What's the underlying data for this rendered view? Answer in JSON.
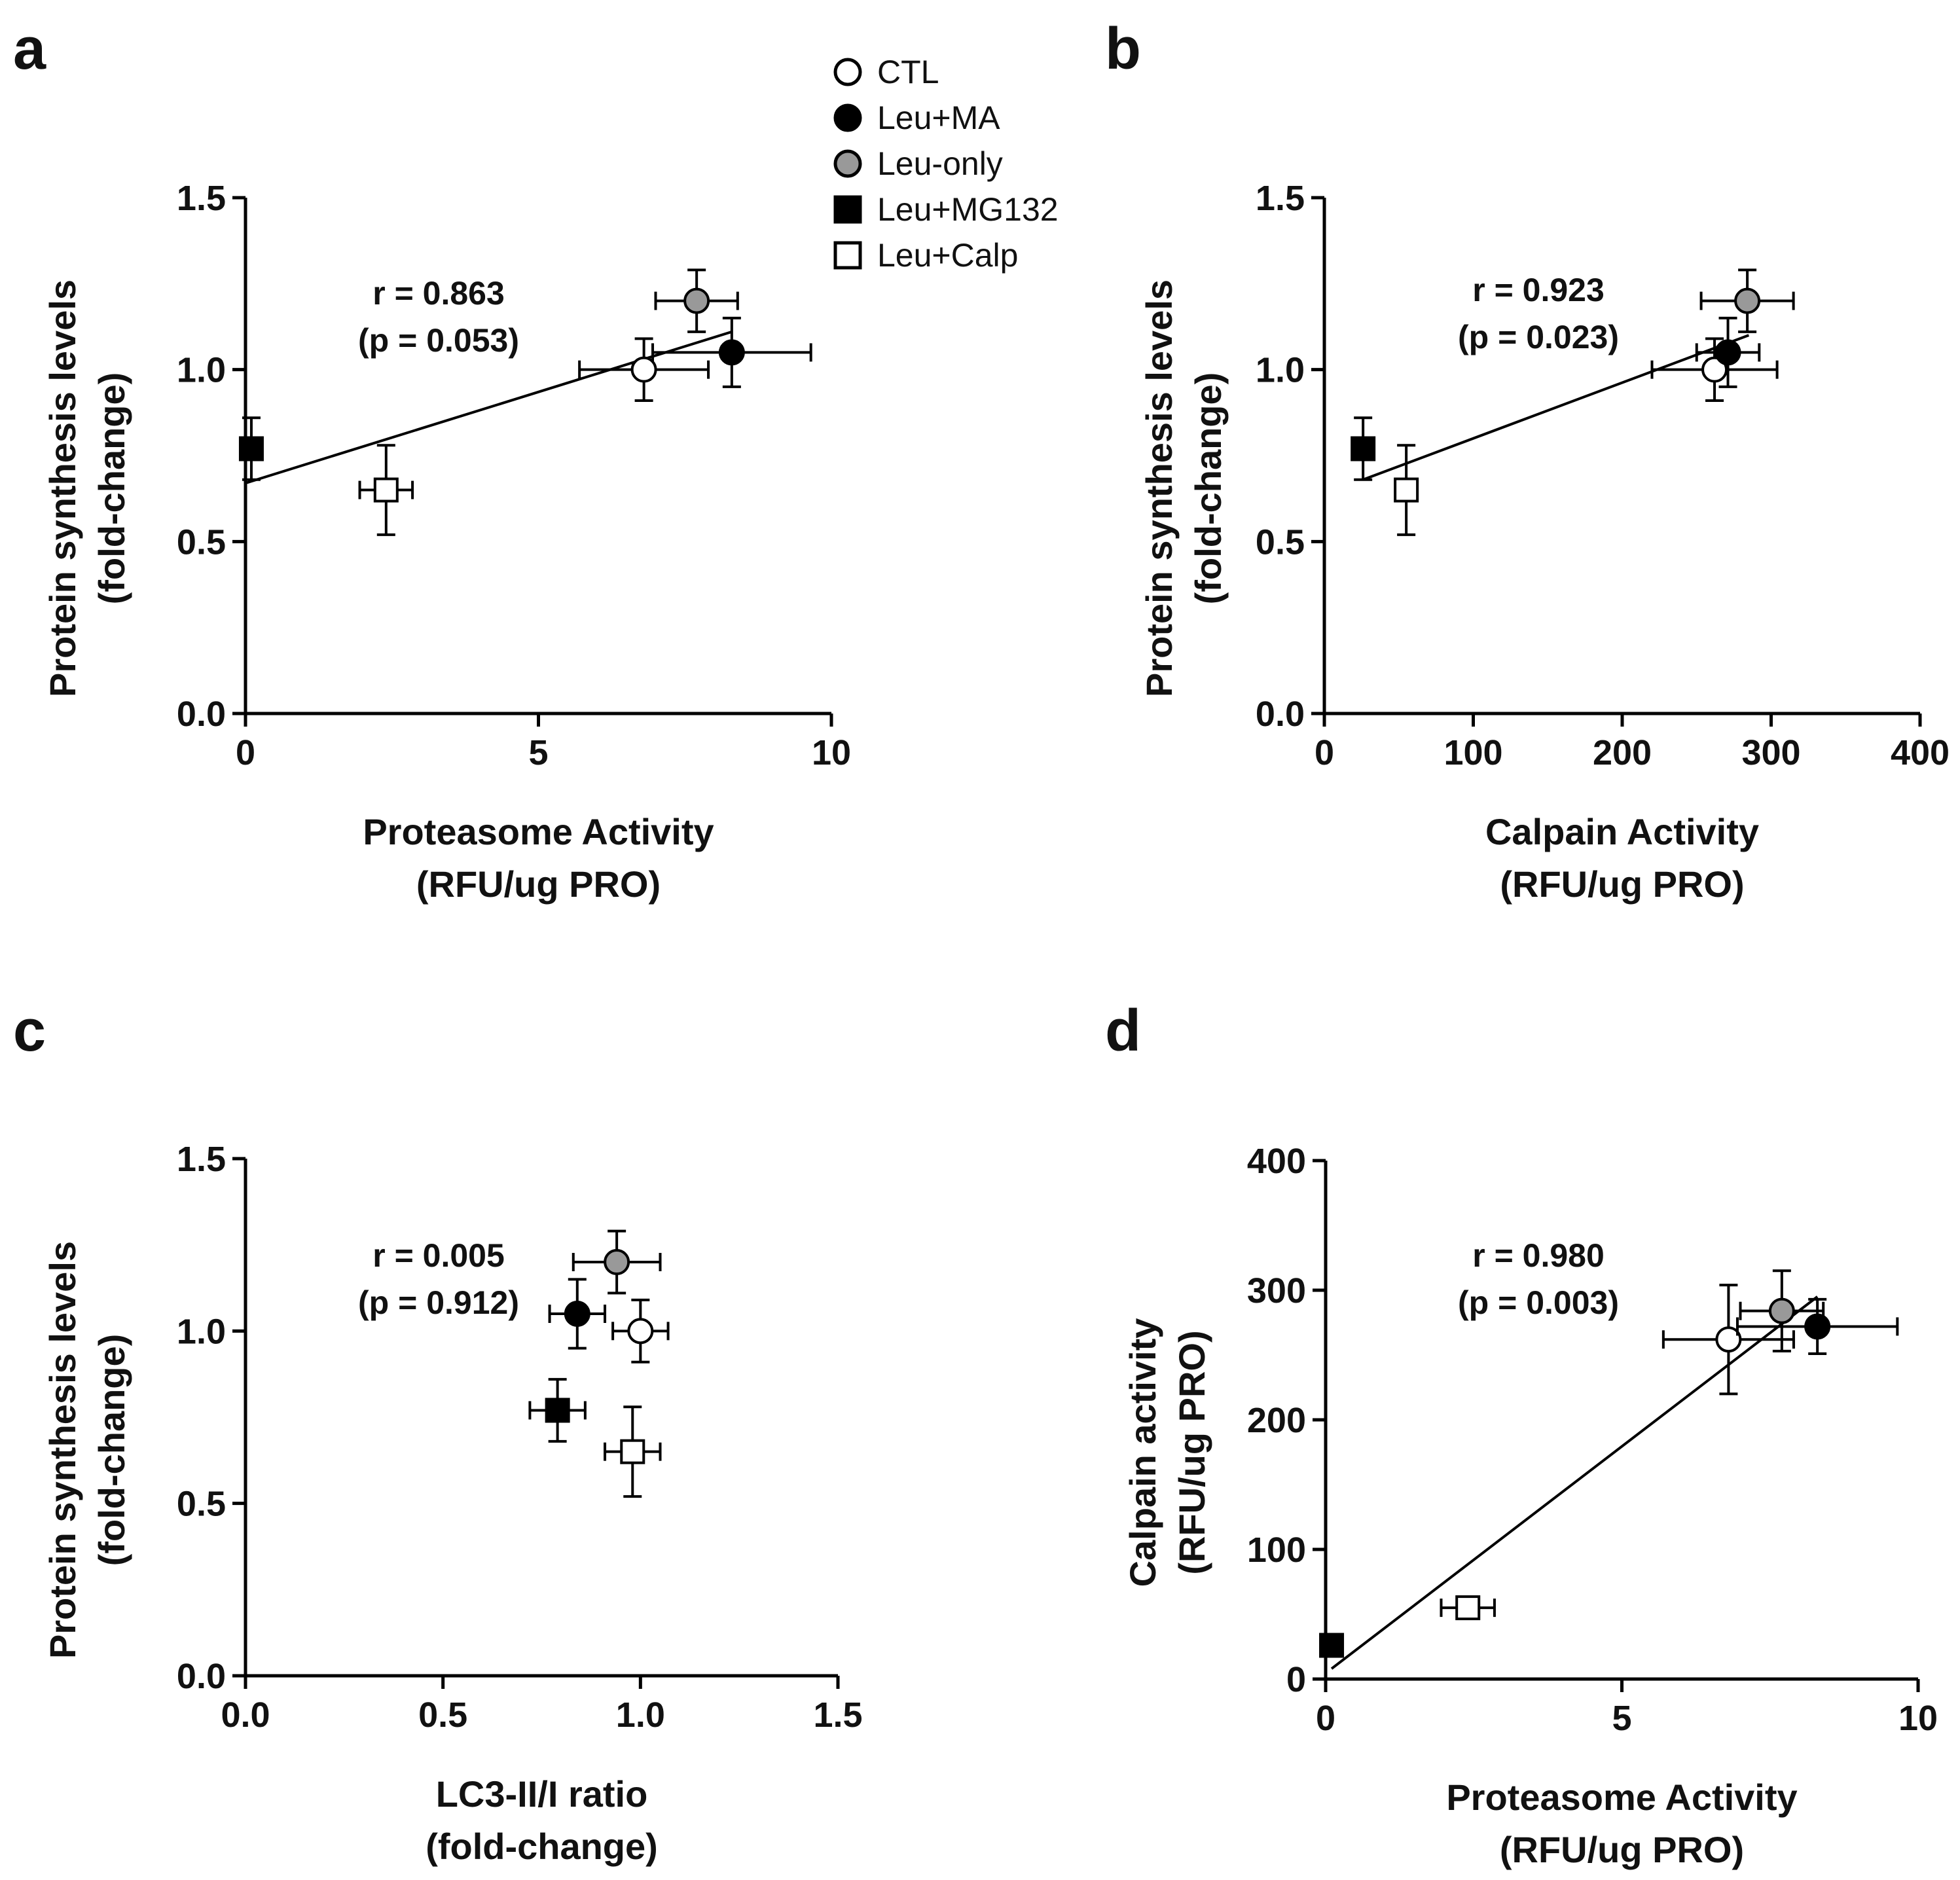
{
  "legend": {
    "items": [
      {
        "label": "CTL",
        "marker": "circle",
        "fill": "#ffffff"
      },
      {
        "label": "Leu+MA",
        "marker": "circle",
        "fill": "#000000"
      },
      {
        "label": "Leu-only",
        "marker": "circle",
        "fill": "#999999"
      },
      {
        "label": "Leu+MG132",
        "marker": "square",
        "fill": "#000000"
      },
      {
        "label": "Leu+Calp",
        "marker": "square",
        "fill": "#ffffff"
      }
    ]
  },
  "chart_data": [
    {
      "panel": "a",
      "type": "scatter",
      "xlabel": [
        "Proteasome Activity",
        "(RFU/ug PRO)"
      ],
      "ylabel": [
        "Protein synthesis levels",
        "(fold-change)"
      ],
      "xlim": [
        0,
        10
      ],
      "ylim": [
        0,
        1.5
      ],
      "xticks": [
        0,
        5,
        10
      ],
      "xtick_labels": [
        "0",
        "5",
        "10"
      ],
      "yticks": [
        0,
        0.5,
        1.0,
        1.5
      ],
      "ytick_labels": [
        "0.0",
        "0.5",
        "1.0",
        "1.5"
      ],
      "annotation": [
        "r = 0.863",
        "(p = 0.053)"
      ],
      "fit_line": {
        "x": [
          0,
          8.3
        ],
        "y": [
          0.67,
          1.11
        ]
      },
      "points": [
        {
          "group": "CTL",
          "x": 6.8,
          "y": 1.0,
          "xerr": 1.1,
          "yerr": 0.09
        },
        {
          "group": "Leu+MA",
          "x": 8.3,
          "y": 1.05,
          "xerr": 1.35,
          "yerr": 0.1
        },
        {
          "group": "Leu-only",
          "x": 7.7,
          "y": 1.2,
          "xerr": 0.7,
          "yerr": 0.09
        },
        {
          "group": "Leu+MG132",
          "x": 0.1,
          "y": 0.77,
          "xerr": 0.05,
          "yerr": 0.09
        },
        {
          "group": "Leu+Calp",
          "x": 2.4,
          "y": 0.65,
          "xerr": 0.45,
          "yerr": 0.13
        }
      ]
    },
    {
      "panel": "b",
      "type": "scatter",
      "xlabel": [
        "Calpain Activity",
        "(RFU/ug PRO)"
      ],
      "ylabel": [
        "Protein synthesis levels",
        "(fold-change)"
      ],
      "xlim": [
        0,
        400
      ],
      "ylim": [
        0,
        1.5
      ],
      "xticks": [
        0,
        100,
        200,
        300,
        400
      ],
      "xtick_labels": [
        "0",
        "100",
        "200",
        "300",
        "400"
      ],
      "yticks": [
        0,
        0.5,
        1.0,
        1.5
      ],
      "ytick_labels": [
        "0.0",
        "0.5",
        "1.0",
        "1.5"
      ],
      "annotation": [
        "r = 0.923",
        "(p = 0.023)"
      ],
      "fit_line": {
        "x": [
          26,
          285
        ],
        "y": [
          0.68,
          1.1
        ]
      },
      "points": [
        {
          "group": "CTL",
          "x": 262,
          "y": 1.0,
          "xerr": 42,
          "yerr": 0.09
        },
        {
          "group": "Leu+MA",
          "x": 271,
          "y": 1.05,
          "xerr": 21,
          "yerr": 0.1
        },
        {
          "group": "Leu-only",
          "x": 284,
          "y": 1.2,
          "xerr": 31,
          "yerr": 0.09
        },
        {
          "group": "Leu+MG132",
          "x": 26,
          "y": 0.77,
          "xerr": 0,
          "yerr": 0.09
        },
        {
          "group": "Leu+Calp",
          "x": 55,
          "y": 0.65,
          "xerr": 0,
          "yerr": 0.13
        }
      ]
    },
    {
      "panel": "c",
      "type": "scatter",
      "xlabel": [
        "LC3-II/I ratio",
        "(fold-change)"
      ],
      "ylabel": [
        "Protein synthesis levels",
        "(fold-change)"
      ],
      "xlim": [
        0,
        1.5
      ],
      "ylim": [
        0,
        1.5
      ],
      "xticks": [
        0,
        0.5,
        1.0,
        1.5
      ],
      "xtick_labels": [
        "0.0",
        "0.5",
        "1.0",
        "1.5"
      ],
      "yticks": [
        0,
        0.5,
        1.0,
        1.5
      ],
      "ytick_labels": [
        "0.0",
        "0.5",
        "1.0",
        "1.5"
      ],
      "annotation": [
        "r = 0.005",
        "(p = 0.912)"
      ],
      "fit_line": null,
      "points": [
        {
          "group": "CTL",
          "x": 1.0,
          "y": 1.0,
          "xerr": 0.07,
          "yerr": 0.09
        },
        {
          "group": "Leu+MA",
          "x": 0.84,
          "y": 1.05,
          "xerr": 0.07,
          "yerr": 0.1
        },
        {
          "group": "Leu-only",
          "x": 0.94,
          "y": 1.2,
          "xerr": 0.11,
          "yerr": 0.09
        },
        {
          "group": "Leu+MG132",
          "x": 0.79,
          "y": 0.77,
          "xerr": 0.07,
          "yerr": 0.09
        },
        {
          "group": "Leu+Calp",
          "x": 0.98,
          "y": 0.65,
          "xerr": 0.07,
          "yerr": 0.13
        }
      ]
    },
    {
      "panel": "d",
      "type": "scatter",
      "xlabel": [
        "Proteasome Activity",
        "(RFU/ug PRO)"
      ],
      "ylabel": [
        "Calpain activity",
        "(RFU/ug PRO)"
      ],
      "xlim": [
        0,
        10
      ],
      "ylim": [
        0,
        400
      ],
      "xticks": [
        0,
        5,
        10
      ],
      "xtick_labels": [
        "0",
        "5",
        "10"
      ],
      "yticks": [
        0,
        100,
        200,
        300,
        400
      ],
      "ytick_labels": [
        "0",
        "100",
        "200",
        "300",
        "400"
      ],
      "annotation": [
        "r = 0.980",
        "(p = 0.003)"
      ],
      "fit_line": {
        "x": [
          0.1,
          8.3
        ],
        "y": [
          8,
          295
        ]
      },
      "points": [
        {
          "group": "CTL",
          "x": 6.8,
          "y": 262,
          "xerr": 1.1,
          "yerr": 42
        },
        {
          "group": "Leu+MA",
          "x": 8.3,
          "y": 272,
          "xerr": 1.35,
          "yerr": 21
        },
        {
          "group": "Leu-only",
          "x": 7.7,
          "y": 284,
          "xerr": 0.7,
          "yerr": 31
        },
        {
          "group": "Leu+MG132",
          "x": 0.1,
          "y": 26,
          "xerr": 0,
          "yerr": 0
        },
        {
          "group": "Leu+Calp",
          "x": 2.4,
          "y": 55,
          "xerr": 0.45,
          "yerr": 0
        }
      ]
    }
  ]
}
